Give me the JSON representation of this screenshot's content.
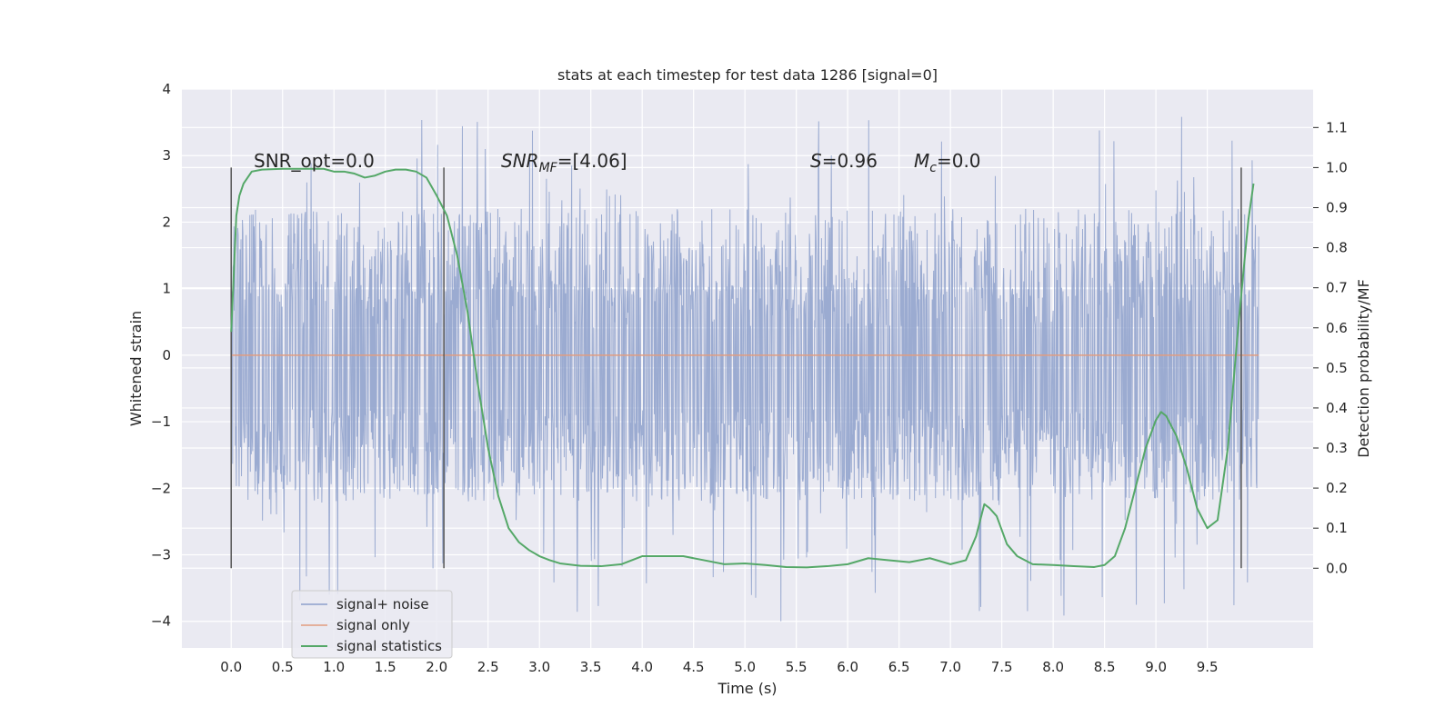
{
  "chart_data": {
    "type": "line",
    "title": "stats at each timestep for test data 1286 [signal=0]",
    "xlabel": "Time (s)",
    "ylabel": "Whitened strain",
    "y2label": "Detection probability/MF",
    "xlim": [
      -0.48,
      10.53
    ],
    "ylim": [
      -4.4,
      4.0
    ],
    "y2lim": [
      -0.199,
      1.196
    ],
    "xticks": [
      "0.0",
      "0.5",
      "1.0",
      "1.5",
      "2.0",
      "2.5",
      "3.0",
      "3.5",
      "4.0",
      "4.5",
      "5.0",
      "5.5",
      "6.0",
      "6.5",
      "7.0",
      "7.5",
      "8.0",
      "8.5",
      "9.0",
      "9.5"
    ],
    "yticks": [
      "4",
      "3",
      "2",
      "1",
      "0",
      "−1",
      "−2",
      "−3",
      "−4"
    ],
    "y2ticks": [
      "1.1",
      "1.0",
      "0.9",
      "0.8",
      "0.7",
      "0.6",
      "0.5",
      "0.4",
      "0.3",
      "0.2",
      "0.1",
      "0.0"
    ],
    "grid": true,
    "legend_position": "lower-left",
    "annotations": {
      "snr_opt": "SNR_opt=0.0",
      "snr_mf_main": "SNR",
      "snr_mf_sub": "MF",
      "snr_mf_rest": "=[4.06]",
      "s_main": "S",
      "s_rest": "=0.96",
      "mc_main": "M",
      "mc_sub": "c",
      "mc_rest": "=0.0"
    },
    "vertical_lines_x": [
      0.0,
      2.07,
      9.83
    ],
    "vertical_lines_y2range": [
      0.0,
      1.0
    ],
    "series": [
      {
        "name": "signal+ noise",
        "color": "#8da0cb",
        "axis": "left",
        "x_range": [
          0.0,
          10.0
        ],
        "noise_envelope": {
          "upper_typical": 2.0,
          "lower_typical": -2.0,
          "upper_max": 3.6,
          "lower_min": -4.0
        }
      },
      {
        "name": "signal only",
        "color": "#e19c7f",
        "axis": "left",
        "x": [
          0.0,
          10.0
        ],
        "y": [
          0.0,
          0.0
        ]
      },
      {
        "name": "signal statistics",
        "color": "#55a868",
        "axis": "right",
        "x": [
          0.0,
          0.05,
          0.08,
          0.12,
          0.2,
          0.3,
          0.5,
          0.7,
          0.9,
          1.0,
          1.1,
          1.2,
          1.3,
          1.4,
          1.5,
          1.6,
          1.7,
          1.8,
          1.9,
          2.0,
          2.1,
          2.2,
          2.3,
          2.4,
          2.5,
          2.6,
          2.7,
          2.8,
          2.9,
          3.0,
          3.1,
          3.2,
          3.4,
          3.6,
          3.8,
          4.0,
          4.2,
          4.4,
          4.6,
          4.8,
          5.0,
          5.2,
          5.4,
          5.6,
          5.8,
          6.0,
          6.2,
          6.4,
          6.6,
          6.8,
          7.0,
          7.15,
          7.25,
          7.33,
          7.38,
          7.45,
          7.55,
          7.65,
          7.8,
          8.0,
          8.2,
          8.4,
          8.5,
          8.6,
          8.7,
          8.8,
          8.9,
          9.0,
          9.05,
          9.1,
          9.2,
          9.3,
          9.4,
          9.5,
          9.6,
          9.7,
          9.8,
          9.9,
          9.95
        ],
        "y": [
          0.59,
          0.88,
          0.93,
          0.96,
          0.99,
          0.995,
          0.997,
          0.997,
          0.997,
          0.99,
          0.99,
          0.985,
          0.975,
          0.98,
          0.99,
          0.995,
          0.995,
          0.99,
          0.975,
          0.93,
          0.88,
          0.78,
          0.64,
          0.46,
          0.3,
          0.18,
          0.1,
          0.065,
          0.045,
          0.03,
          0.02,
          0.012,
          0.006,
          0.005,
          0.01,
          0.03,
          0.03,
          0.03,
          0.02,
          0.01,
          0.012,
          0.008,
          0.003,
          0.002,
          0.005,
          0.01,
          0.025,
          0.02,
          0.015,
          0.025,
          0.01,
          0.02,
          0.08,
          0.16,
          0.15,
          0.13,
          0.06,
          0.03,
          0.01,
          0.008,
          0.005,
          0.003,
          0.008,
          0.03,
          0.1,
          0.2,
          0.3,
          0.37,
          0.39,
          0.38,
          0.33,
          0.25,
          0.15,
          0.1,
          0.12,
          0.3,
          0.6,
          0.87,
          0.96
        ]
      }
    ]
  }
}
